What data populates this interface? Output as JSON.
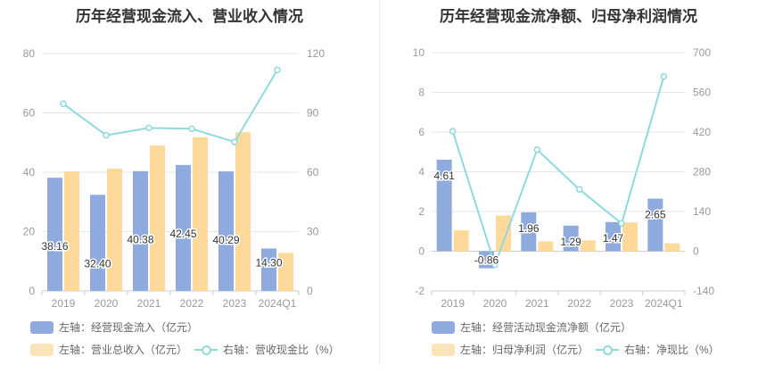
{
  "chart_data": [
    {
      "type": "bar",
      "title": "历年经营现金流入、营业收入情况",
      "categories": [
        "2019",
        "2020",
        "2021",
        "2022",
        "2023",
        "2024Q1"
      ],
      "left_axis": {
        "ticks": [
          "0",
          "20",
          "40",
          "60",
          "80"
        ],
        "ylim": [
          0,
          80
        ]
      },
      "right_axis": {
        "ticks": [
          "0",
          "30",
          "60",
          "90",
          "120"
        ],
        "ylim": [
          0,
          120
        ]
      },
      "series": [
        {
          "name": "左轴：经营现金流入（亿元）",
          "type": "bar",
          "axis": "left",
          "color": "#8faadc",
          "values": [
            38.16,
            32.4,
            40.38,
            42.45,
            40.29,
            14.3
          ],
          "labels": [
            "38.16",
            "32.40",
            "40.38",
            "42.45",
            "40.29",
            "14.30"
          ]
        },
        {
          "name": "左轴：营业总收入（亿元）",
          "type": "bar",
          "axis": "left",
          "color": "#ffd99a",
          "values": [
            40.3,
            41.2,
            49.0,
            51.8,
            53.5,
            12.8
          ]
        },
        {
          "name": "右轴：营收现金比（%）",
          "type": "line",
          "axis": "right",
          "color": "#8fd9de",
          "values": [
            94.6,
            78.7,
            82.4,
            82.0,
            75.3,
            111.7
          ]
        }
      ]
    },
    {
      "type": "bar",
      "title": "历年经营现金流净额、归母净利润情况",
      "categories": [
        "2019",
        "2020",
        "2021",
        "2022",
        "2023",
        "2024Q1"
      ],
      "left_axis": {
        "ticks": [
          "-2",
          "0",
          "2",
          "4",
          "6",
          "8",
          "10"
        ],
        "ylim": [
          -2,
          10
        ]
      },
      "right_axis": {
        "ticks": [
          "-140",
          "0",
          "140",
          "280",
          "420",
          "560",
          "700"
        ],
        "ylim": [
          -140,
          700
        ]
      },
      "series": [
        {
          "name": "左轴：经营活动现金流净额（亿元）",
          "type": "bar",
          "axis": "left",
          "color": "#8faadc",
          "values": [
            4.61,
            -0.86,
            1.96,
            1.29,
            1.47,
            2.65
          ],
          "labels": [
            "4.61",
            "-0.86",
            "1.96",
            "1.29",
            "1.47",
            "2.65"
          ]
        },
        {
          "name": "左轴：归母净利润（亿元）",
          "type": "bar",
          "axis": "left",
          "color": "#ffd99a",
          "values": [
            1.05,
            1.8,
            0.5,
            0.55,
            1.45,
            0.4
          ]
        },
        {
          "name": "右轴：净现比（%）",
          "type": "line",
          "axis": "right",
          "color": "#8fd9de",
          "values": [
            423,
            -48,
            358,
            218,
            98,
            616
          ]
        }
      ]
    }
  ]
}
